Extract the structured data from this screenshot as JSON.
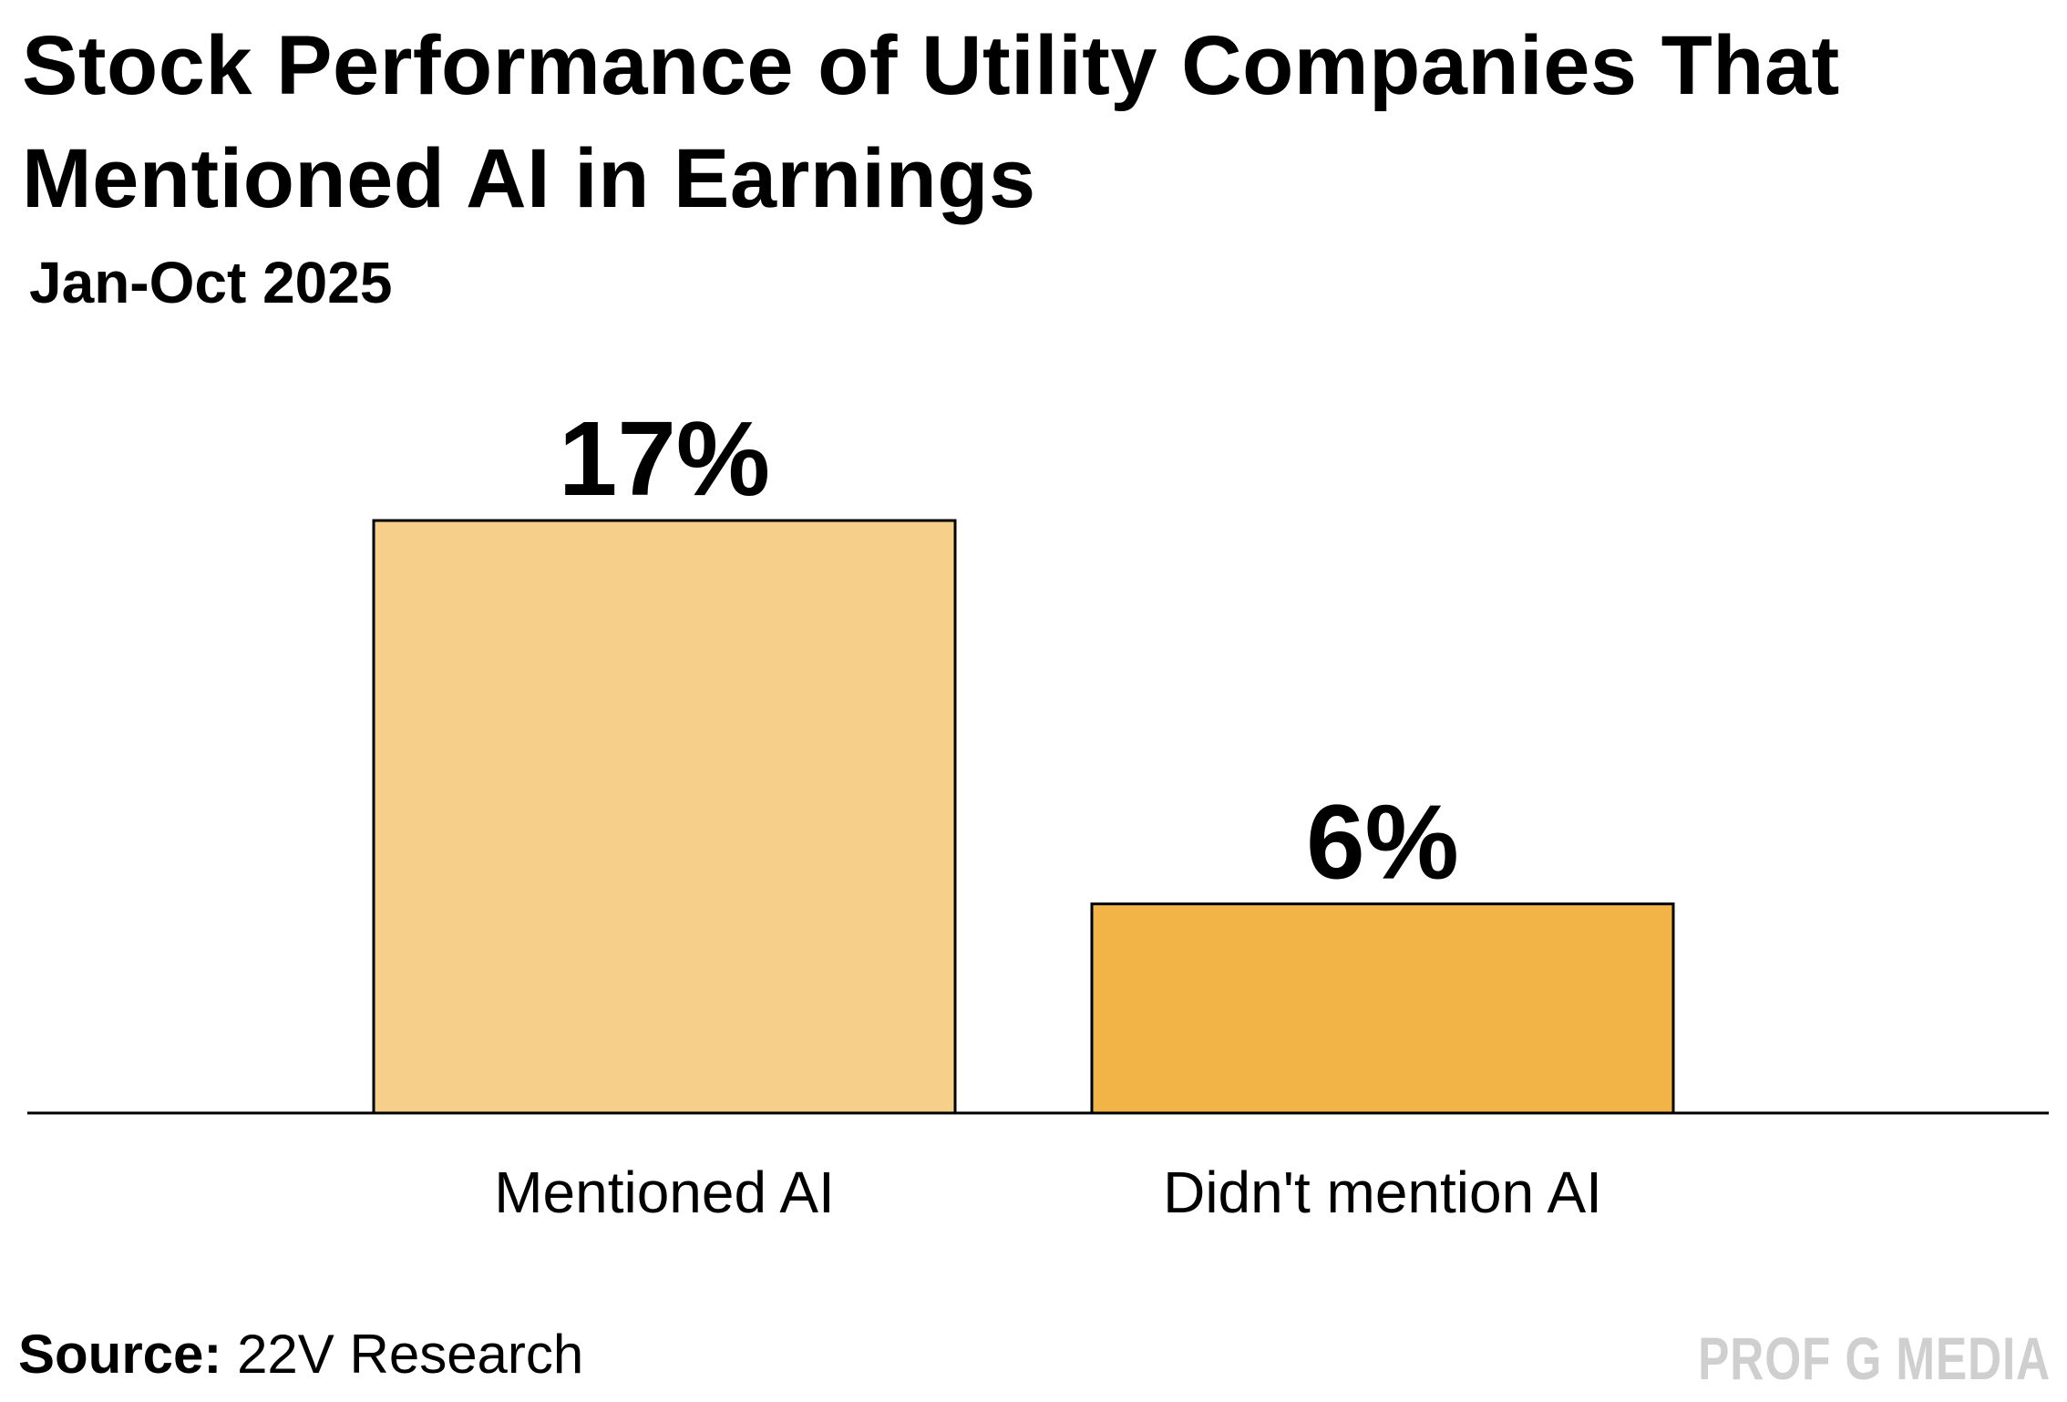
{
  "chart_data": {
    "type": "bar",
    "title": "Stock Performance of Utility Companies That Mentioned AI in Earnings",
    "subtitle": "Jan-Oct 2025",
    "categories": [
      "Mentioned AI",
      "Didn't mention AI"
    ],
    "values": [
      17,
      6
    ],
    "value_labels": [
      "17%",
      "6%"
    ],
    "unit": "%",
    "colors": [
      "#F6CF8A",
      "#F2B446"
    ],
    "xlabel": "",
    "ylabel": "",
    "ylim": [
      0,
      17
    ],
    "grid": false,
    "legend": "none"
  },
  "footer": {
    "source_label": "Source:",
    "source_value": "22V Research",
    "watermark": "PROF G MEDIA"
  }
}
